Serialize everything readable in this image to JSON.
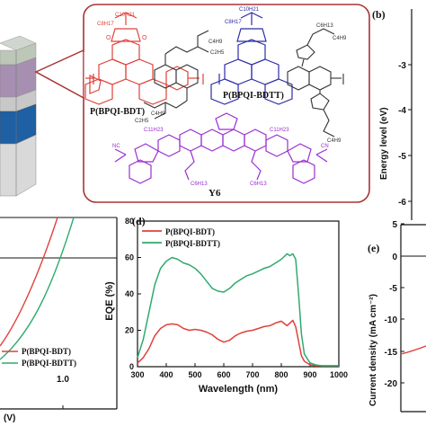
{
  "panels": {
    "b": {
      "label": "(b)",
      "ylabel": "Energy level (eV)",
      "yticks": [
        "-3",
        "-4",
        "-5",
        "-6"
      ]
    },
    "d": {
      "label": "(d)",
      "ylabel": "EQE (%)",
      "xlabel": "Wavelength (nm)",
      "legend": [
        "P(BPQI-BDT)",
        "P(BPQI-BDTT)"
      ]
    },
    "e": {
      "label": "(e)",
      "ylabel": "Current density (mA cm⁻²)",
      "yticks": [
        "5",
        "0",
        "-5",
        "-10",
        "-15",
        "-20"
      ]
    },
    "c_partial": {
      "legend": [
        "P(BPQI-BDT)",
        "P(BPQI-BDTT)"
      ],
      "xtick": "1.0",
      "xlabel_fragment": "(V)"
    }
  },
  "structures": {
    "p1": "P(BPQI-BDT)",
    "p2": "P(BPQI-BDTT)",
    "y6": "Y6",
    "alkyl_labels": [
      "C10H21",
      "C8H17",
      "C6H13",
      "C4H9",
      "C2H5",
      "C11H23"
    ]
  },
  "chart_data": {
    "type": "line",
    "title": "",
    "xlabel": "Wavelength (nm)",
    "ylabel": "EQE (%)",
    "xlim": [
      300,
      1000
    ],
    "ylim": [
      0,
      80
    ],
    "xticks": [
      300,
      400,
      500,
      600,
      700,
      800,
      900,
      1000
    ],
    "yticks": [
      0,
      20,
      40,
      60,
      80
    ],
    "legend_position": "top-left",
    "series": [
      {
        "name": "P(BPQI-BDT)",
        "color": "#e0413a",
        "x": [
          300,
          320,
          340,
          360,
          380,
          400,
          420,
          440,
          460,
          480,
          500,
          520,
          540,
          560,
          580,
          600,
          620,
          640,
          660,
          680,
          700,
          720,
          740,
          760,
          780,
          800,
          820,
          840,
          850,
          860,
          870,
          880,
          900,
          920,
          940,
          960,
          980,
          1000
        ],
        "y": [
          2,
          5,
          10,
          17,
          21,
          23,
          23.5,
          23,
          21,
          20,
          20.5,
          20,
          19,
          17.5,
          15,
          13.5,
          14.5,
          17,
          18.5,
          19.5,
          20,
          21,
          22,
          22.5,
          24,
          25,
          22.5,
          25.5,
          22,
          14,
          6,
          3,
          1,
          0.5,
          0.5,
          0.5,
          0.5,
          0.5
        ]
      },
      {
        "name": "P(BPQI-BDTT)",
        "color": "#2faa6e",
        "x": [
          300,
          320,
          340,
          360,
          380,
          400,
          420,
          440,
          460,
          480,
          500,
          520,
          540,
          560,
          580,
          600,
          620,
          640,
          660,
          680,
          700,
          720,
          740,
          760,
          780,
          800,
          820,
          830,
          840,
          850,
          860,
          870,
          880,
          900,
          920,
          940,
          960,
          980,
          1000
        ],
        "y": [
          5,
          15,
          30,
          45,
          54,
          58,
          60,
          59,
          57,
          56,
          54,
          51,
          47,
          43,
          41.5,
          41,
          43,
          46,
          48,
          50,
          51,
          52.5,
          54,
          55,
          57,
          59,
          62,
          61,
          62,
          59,
          40,
          18,
          7,
          2,
          1,
          0.5,
          0.5,
          0.5,
          0.5
        ]
      }
    ]
  }
}
